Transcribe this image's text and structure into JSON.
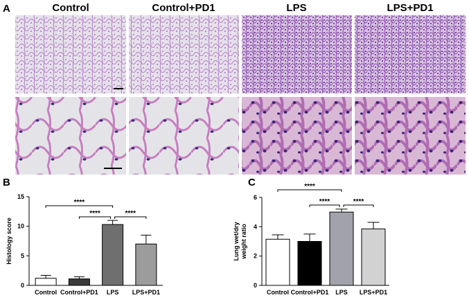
{
  "figure": {
    "panel_a": "A",
    "columns": [
      "Control",
      "Control+PD1",
      "LPS",
      "LPS+PD1"
    ]
  },
  "chart_data": [
    {
      "type": "bar",
      "panel": "B",
      "y_label": [
        "Histology score"
      ],
      "categories": [
        "Control",
        "Control+PD1",
        "LPS",
        "LPS+PD1"
      ],
      "series": [
        {
          "colors": [
            "#ffffff",
            "#3a3a3a",
            "#6f6f6f",
            "#9c9c9c"
          ],
          "values": [
            1.2,
            1.1,
            10.3,
            7.0
          ],
          "errors": [
            0.5,
            0.35,
            0.7,
            1.5
          ]
        }
      ],
      "ylim": [
        0,
        15
      ],
      "yticks": [
        0,
        5,
        10,
        15
      ],
      "annotations": [
        "****",
        "****",
        "****"
      ]
    },
    {
      "type": "bar",
      "panel": "C",
      "y_label": [
        "Lung wet/dry",
        "weight ratio"
      ],
      "categories": [
        "Control",
        "Control+PD1",
        "LPS",
        "LPS+PD1"
      ],
      "series": [
        {
          "colors": [
            "#ffffff",
            "#000000",
            "#a2a2aa",
            "#d2d2d2"
          ],
          "values": [
            3.15,
            3.0,
            5.0,
            3.85
          ],
          "errors": [
            0.3,
            0.5,
            0.2,
            0.45
          ]
        }
      ],
      "ylim": [
        0,
        6
      ],
      "yticks": [
        0,
        2,
        4,
        6
      ],
      "annotations": [
        "****",
        "****",
        "****"
      ]
    }
  ]
}
